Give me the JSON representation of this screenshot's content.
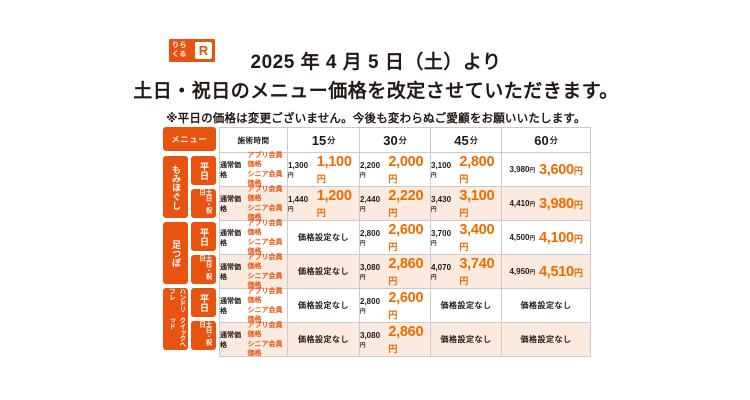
{
  "colors": {
    "brand_orange": "#e8540f",
    "price_orange": "#ed6c00",
    "weekend_row_bg": "#faeadf",
    "text_dark": "#221815",
    "grid_line": "#cfcac6"
  },
  "logo": {
    "text_line1": "りら",
    "text_line2": "くる",
    "mark": "R"
  },
  "header": {
    "title_line1": "2025 年 4 月 5 日（土）より",
    "title_line2": "土日・祝日のメニュー価格を改定させていただきます。",
    "note": "※平日の価格は変更ございません。今後も変わらぬご愛顧をお願いいたします。"
  },
  "table": {
    "menu_header": "メニュー",
    "time_header": "施術時間",
    "durations": [
      "15",
      "30",
      "45",
      "60"
    ],
    "duration_unit": "分",
    "regular_label": "通常価格",
    "member_label_line1": "アプリ会員価格",
    "member_label_line2": "シニア会員価格",
    "no_price": "価格設定なし",
    "yen_suffix": "円",
    "groups": [
      {
        "category": "もみほぐし",
        "rows": [
          {
            "day": "平日",
            "prices": [
              {
                "old": "1,300",
                "new": "1,100"
              },
              {
                "old": "2,200",
                "new": "2,000"
              },
              {
                "old": "3,100",
                "new": "2,800"
              },
              {
                "old": "3,980",
                "new": "3,600"
              }
            ]
          },
          {
            "day": "土日・祝日",
            "prices": [
              {
                "old": "1,440",
                "new": "1,200"
              },
              {
                "old": "2,440",
                "new": "2,220"
              },
              {
                "old": "3,430",
                "new": "3,100"
              },
              {
                "old": "4,410",
                "new": "3,980"
              }
            ]
          }
        ]
      },
      {
        "category": "足つぼ",
        "rows": [
          {
            "day": "平日",
            "prices": [
              {
                "none": true
              },
              {
                "old": "2,800",
                "new": "2,600"
              },
              {
                "old": "3,700",
                "new": "3,400"
              },
              {
                "old": "4,500",
                "new": "4,100"
              }
            ]
          },
          {
            "day": "土日・祝日",
            "prices": [
              {
                "none": true
              },
              {
                "old": "3,080",
                "new": "2,860"
              },
              {
                "old": "4,070",
                "new": "3,740"
              },
              {
                "old": "4,950",
                "new": "4,510"
              }
            ]
          }
        ]
      },
      {
        "category": "ハンドリフレ",
        "category_line2": "クイックヘッド",
        "rows": [
          {
            "day": "平日",
            "prices": [
              {
                "none": true
              },
              {
                "old": "2,800",
                "new": "2,600"
              },
              {
                "none": true
              },
              {
                "none": true
              }
            ]
          },
          {
            "day": "土日・祝日",
            "prices": [
              {
                "none": true
              },
              {
                "old": "3,080",
                "new": "2,860"
              },
              {
                "none": true
              },
              {
                "none": true
              }
            ]
          }
        ]
      }
    ]
  }
}
